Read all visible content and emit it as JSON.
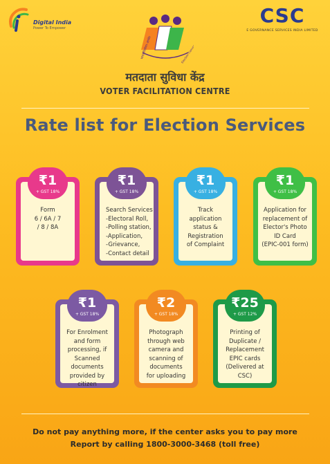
{
  "header": {
    "digital_india_title": "Digital India",
    "digital_india_tagline": "Power To Empower",
    "csc_logo_text": "CSC",
    "csc_subtitle": "E GOVERNANCE SERVICES INDIA LIMITED",
    "eci_logo_hindi": "भारत निर्वाचन आयोग",
    "eci_logo_english": "Election Commission of India",
    "hindi_title": "मतदाता सुविधा केंद्र",
    "english_title": "VOTER FACILITATION CENTRE"
  },
  "main_title": "Rate list for Election Services",
  "colors": {
    "pink": "#e8398b",
    "purple": "#7d5396",
    "blue": "#38b0e2",
    "green": "#3fbf46",
    "violet": "#7c5aa3",
    "orange": "#f28a22",
    "darkgreen": "#1e9a48",
    "title": "#4a5a7c"
  },
  "cards": [
    {
      "price": "₹1",
      "gst": "+ GST 18%",
      "lines": [
        "Form",
        "6 / 6A / 7",
        "/ 8 / 8A"
      ],
      "color_key": "pink"
    },
    {
      "price": "₹1",
      "gst": "+ GST 18%",
      "lines": [
        "Search Services",
        "-Electoral Roll,",
        "-Polling station,",
        "-Application,",
        "-Grievance,",
        "-Contact detail"
      ],
      "color_key": "purple"
    },
    {
      "price": "₹1",
      "gst": "+ GST 18%",
      "lines": [
        "Track",
        "application",
        "status &",
        "Registration",
        "of Complaint"
      ],
      "color_key": "blue"
    },
    {
      "price": "₹1",
      "gst": "+ GST 18%",
      "lines": [
        "Application for",
        "replacement of",
        "Elector's Photo",
        "ID Card",
        "(EPIC-001 form)"
      ],
      "color_key": "green"
    },
    {
      "price": "₹1",
      "gst": "+ GST 18%",
      "lines": [
        "For Enrolment",
        "and form",
        "processing, if",
        "Scanned",
        "documents",
        "provided by",
        "citizen"
      ],
      "color_key": "violet"
    },
    {
      "price": "₹2",
      "gst": "+ GST 18%",
      "lines": [
        "Photograph",
        "through web",
        "camera and",
        "scanning of",
        "documents",
        "for uploading"
      ],
      "color_key": "orange"
    },
    {
      "price": "₹25",
      "gst": "+ GST 12%",
      "lines": [
        "Printing of",
        "Duplicate /",
        "Replacement",
        "EPIC cards",
        "(Delivered at",
        "CSC)"
      ],
      "color_key": "darkgreen"
    }
  ],
  "footer": {
    "line1": "Do not pay anything more, if the center asks you to pay more",
    "line2": "Report by calling 1800-3000-3468 (toll free)"
  }
}
